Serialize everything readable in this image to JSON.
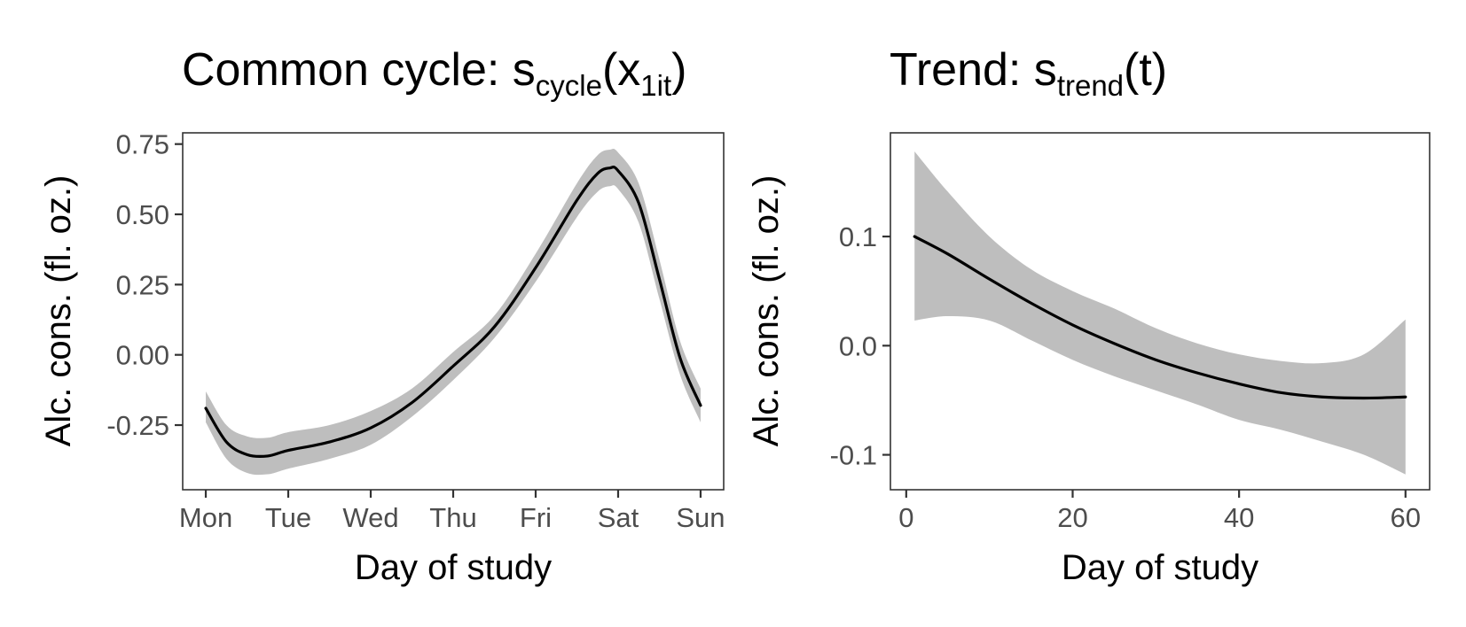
{
  "chart_data": [
    {
      "type": "line",
      "title": {
        "prefix": "Common cycle: s",
        "sub": "cycle",
        "paren_open": "(x",
        "arg_sub": "1it",
        "paren_close": ")"
      },
      "xlabel": "Day of study",
      "ylabel": "Alc. cons. (fl. oz.)",
      "x_tick_labels": [
        "Mon",
        "Tue",
        "Wed",
        "Thu",
        "Fri",
        "Sat",
        "Sun"
      ],
      "x_ticks": [
        1,
        2,
        3,
        4,
        5,
        6,
        7
      ],
      "y_ticks": [
        -0.25,
        0.0,
        0.25,
        0.5,
        0.75
      ],
      "y_tick_labels": [
        "-0.25",
        "0.00",
        "0.25",
        "0.50",
        "0.75"
      ],
      "xlim": [
        0.72,
        7.28
      ],
      "ylim": [
        -0.48,
        0.79
      ],
      "series": [
        {
          "x": [
            1.0,
            1.25,
            1.5,
            1.75,
            2.0,
            2.5,
            3.0,
            3.5,
            4.0,
            4.5,
            5.0,
            5.5,
            5.75,
            5.9,
            6.0,
            6.25,
            6.5,
            6.75,
            7.0
          ],
          "y": [
            -0.19,
            -0.31,
            -0.355,
            -0.36,
            -0.34,
            -0.31,
            -0.26,
            -0.17,
            -0.04,
            0.1,
            0.31,
            0.55,
            0.645,
            0.665,
            0.655,
            0.54,
            0.27,
            -0.01,
            -0.18
          ],
          "lower": [
            -0.24,
            -0.37,
            -0.42,
            -0.425,
            -0.405,
            -0.37,
            -0.32,
            -0.22,
            -0.09,
            0.06,
            0.26,
            0.49,
            0.58,
            0.6,
            0.59,
            0.47,
            0.2,
            -0.07,
            -0.24
          ],
          "upper": [
            -0.13,
            -0.25,
            -0.29,
            -0.295,
            -0.275,
            -0.25,
            -0.2,
            -0.12,
            0.01,
            0.14,
            0.36,
            0.61,
            0.71,
            0.73,
            0.72,
            0.61,
            0.34,
            0.05,
            -0.12
          ]
        }
      ],
      "band_color": "#bebebe",
      "line_color": "#000000",
      "grid": false
    },
    {
      "type": "line",
      "title": {
        "prefix": "Trend: s",
        "sub": "trend",
        "paren_open": "(t",
        "arg_sub": "",
        "paren_close": ")"
      },
      "xlabel": "Day of study",
      "ylabel": "Alc. cons. (fl. oz.)",
      "x_ticks": [
        0,
        20,
        40,
        60
      ],
      "x_tick_labels": [
        "0",
        "20",
        "40",
        "60"
      ],
      "y_ticks": [
        -0.1,
        0.0,
        0.1
      ],
      "y_tick_labels": [
        "-0.1",
        "0.0",
        "0.1"
      ],
      "xlim": [
        -1.9,
        62.9
      ],
      "ylim": [
        -0.132,
        0.195
      ],
      "series": [
        {
          "x": [
            1,
            5,
            10,
            15,
            20,
            25,
            30,
            35,
            40,
            45,
            50,
            55,
            60
          ],
          "y": [
            0.1,
            0.084,
            0.061,
            0.039,
            0.019,
            0.002,
            -0.013,
            -0.025,
            -0.035,
            -0.043,
            -0.047,
            -0.048,
            -0.047
          ],
          "lower": [
            0.023,
            0.027,
            0.023,
            0.005,
            -0.013,
            -0.028,
            -0.041,
            -0.054,
            -0.068,
            -0.077,
            -0.088,
            -0.1,
            -0.118
          ],
          "upper": [
            0.178,
            0.141,
            0.1,
            0.07,
            0.05,
            0.034,
            0.016,
            0.002,
            -0.008,
            -0.014,
            -0.016,
            -0.008,
            0.024
          ]
        }
      ],
      "band_color": "#bebebe",
      "line_color": "#000000",
      "grid": false
    }
  ]
}
